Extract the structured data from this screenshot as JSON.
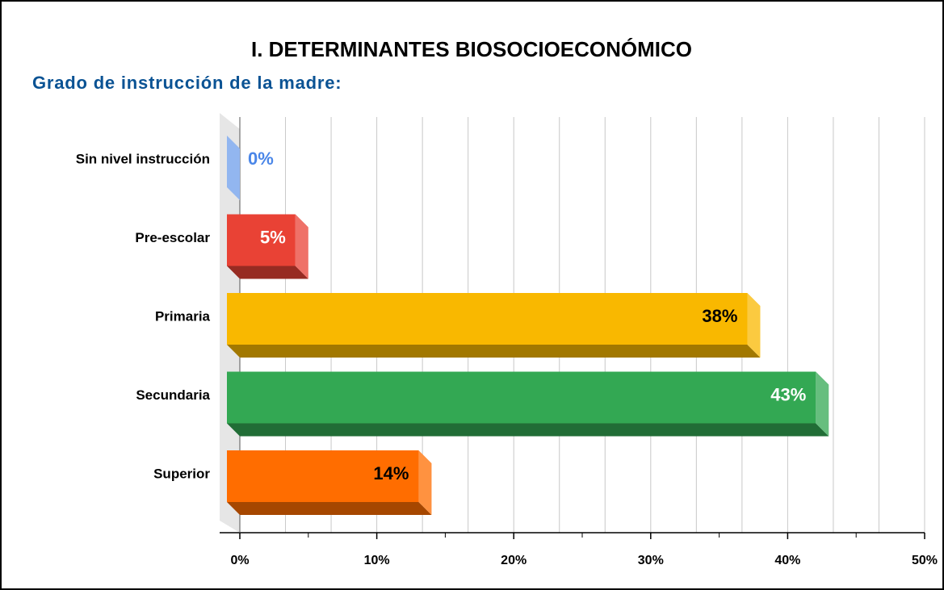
{
  "chart_data": {
    "type": "bar",
    "orientation": "horizontal",
    "title": "I. DETERMINANTES BIOSOCIOECONÓMICO",
    "subtitle": "Grado de instrucción de la madre:",
    "categories": [
      "Sin nivel instrucción",
      "Pre-escolar",
      "Primaria",
      "Secundaria",
      "Superior"
    ],
    "values": [
      0,
      5,
      38,
      43,
      14
    ],
    "value_labels": [
      "0%",
      "5%",
      "38%",
      "43%",
      "14%"
    ],
    "colors": [
      "#6d9eeb",
      "#e94235",
      "#f9b800",
      "#33a853",
      "#ff6d00"
    ],
    "label_colors": [
      "#4a86e8",
      "#ffffff",
      "#000000",
      "#ffffff",
      "#000000"
    ],
    "xlim": [
      0,
      50
    ],
    "xticks": [
      {
        "value": 0,
        "label": "0%"
      },
      {
        "value": 10,
        "label": "10%"
      },
      {
        "value": 20,
        "label": "20%"
      },
      {
        "value": 30,
        "label": "30%"
      },
      {
        "value": 40,
        "label": "40%"
      },
      {
        "value": 50,
        "label": "50%"
      }
    ],
    "grid": true
  }
}
